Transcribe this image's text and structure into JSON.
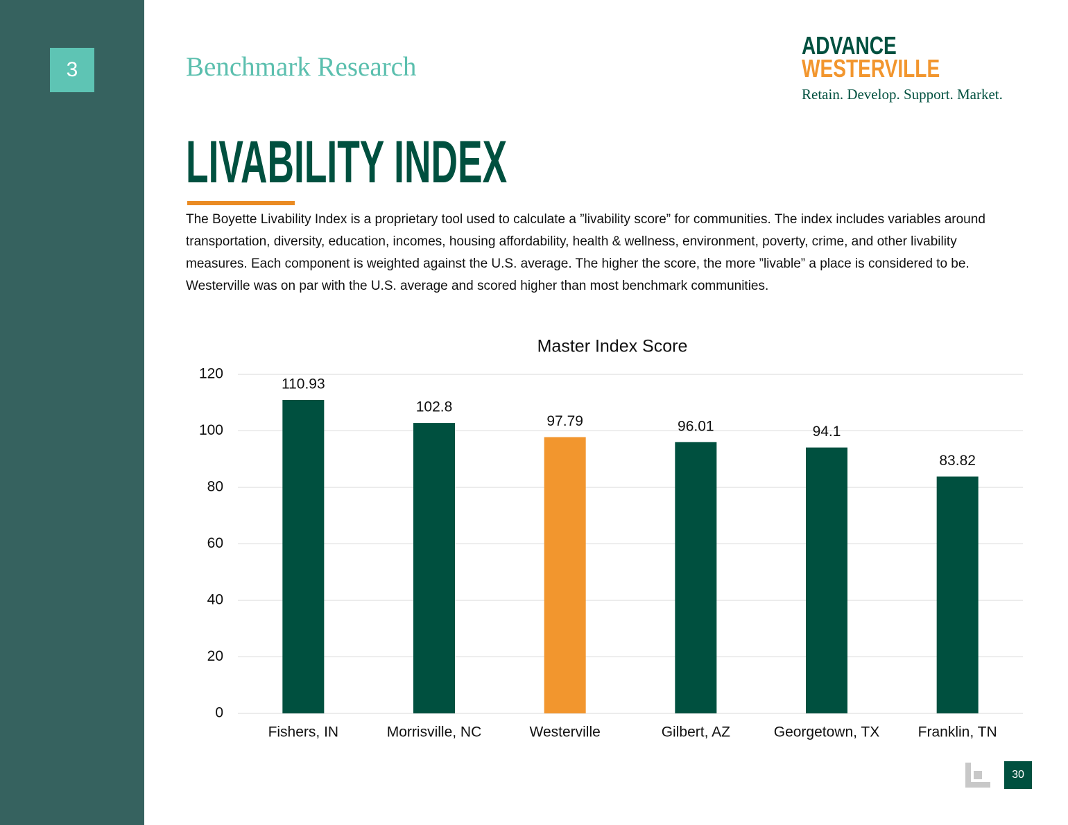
{
  "section_number": "3",
  "section_title": "Benchmark Research",
  "logo": {
    "line1": "ADVANCE",
    "line2": "WESTERVILLE",
    "tagline": "Retain. Develop. Support. Market."
  },
  "title": "LIVABILITY INDEX",
  "body": "The Boyette Livability Index is a proprietary tool used to calculate a ”livability score” for communities. The index includes variables around transportation, diversity, education, incomes, housing affordability, health & wellness, environment, poverty, crime, and other livability measures. Each component is weighted against the U.S. average. The higher the score, the more ”livable” a place is considered to be. Westerville was on par with the U.S. average and scored higher than most benchmark communities.",
  "page_number": "30",
  "chart_data": {
    "type": "bar",
    "title": "Master Index Score",
    "categories": [
      "Fishers, IN",
      "Morrisville, NC",
      "Westerville",
      "Gilbert, AZ",
      "Georgetown, TX",
      "Franklin, TN"
    ],
    "values": [
      110.93,
      102.8,
      97.79,
      96.01,
      94.1,
      83.82
    ],
    "colors": [
      "#00503f",
      "#00503f",
      "#f2962e",
      "#00503f",
      "#00503f",
      "#00503f"
    ],
    "ylim": [
      0,
      120
    ],
    "yticks": [
      0,
      20,
      40,
      60,
      80,
      100,
      120
    ],
    "grid": true
  }
}
